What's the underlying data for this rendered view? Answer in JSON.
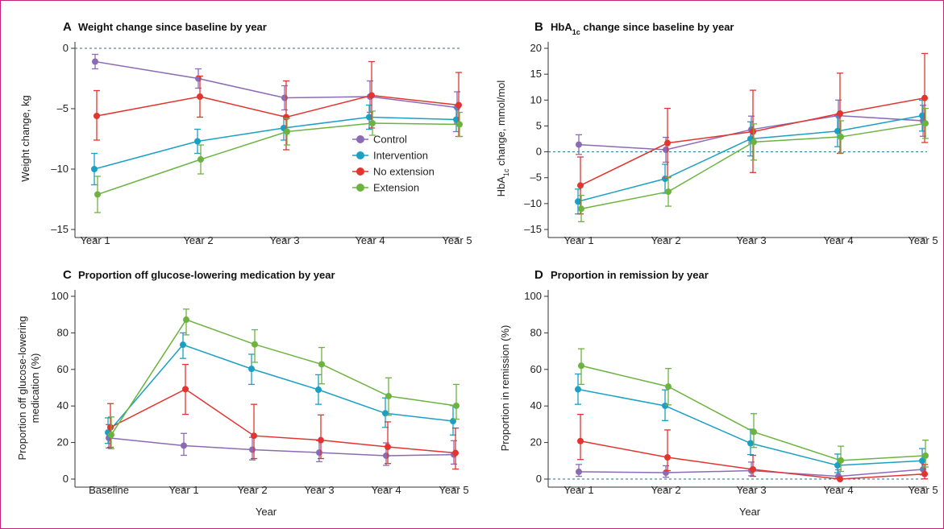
{
  "chart_data": [
    {
      "panel": "A",
      "title": "Weight change since baseline by year",
      "type": "line",
      "ylabel": "Weight change, kg",
      "xlabel": "",
      "categories": [
        "Year 1",
        "Year 2",
        "Year 3",
        "Year 4",
        "Year 5"
      ],
      "ylim": [
        -15,
        0
      ],
      "yticks": [
        0,
        -5,
        -10,
        -15
      ],
      "yticklabels": [
        "0",
        "–5",
        "–10",
        "–15"
      ],
      "zero_line": true,
      "series": [
        {
          "name": "Control",
          "color": "#8b6bb5",
          "values": [
            -1.1,
            -2.5,
            -4.1,
            -4.0,
            -4.9
          ],
          "lower": [
            -1.7,
            -3.3,
            -5.1,
            -5.3,
            -6.2
          ],
          "upper": [
            -0.5,
            -1.7,
            -3.1,
            -2.7,
            -3.6
          ]
        },
        {
          "name": "Intervention",
          "color": "#1ba0c4",
          "values": [
            -10.0,
            -7.7,
            -6.6,
            -5.7,
            -5.9
          ],
          "lower": [
            -11.3,
            -8.7,
            -7.6,
            -6.7,
            -6.9
          ],
          "upper": [
            -8.7,
            -6.7,
            -5.6,
            -4.7,
            -4.9
          ]
        },
        {
          "name": "No extension",
          "color": "#e3342f",
          "values": [
            -5.6,
            -4.0,
            -5.7,
            -3.9,
            -4.7
          ],
          "lower": [
            -7.6,
            -5.7,
            -8.4,
            -6.6,
            -7.3
          ],
          "upper": [
            -3.5,
            -2.3,
            -2.7,
            -1.1,
            -2.0
          ]
        },
        {
          "name": "Extension",
          "color": "#6cb33f",
          "values": [
            -12.1,
            -9.2,
            -6.9,
            -6.2,
            -6.3
          ],
          "lower": [
            -13.6,
            -10.4,
            -8.0,
            -7.2,
            -7.3
          ],
          "upper": [
            -10.6,
            -8.0,
            -5.8,
            -5.2,
            -5.3
          ]
        }
      ],
      "legend": "right"
    },
    {
      "panel": "B",
      "title_main": "HbA",
      "title_sub": "1c",
      "title_rest": " change since baseline by year",
      "type": "line",
      "ylabel_main": "HbA",
      "ylabel_sub": "1c",
      "ylabel_rest": " change, mmol/mol",
      "xlabel": "",
      "categories": [
        "Year 1",
        "Year 2",
        "Year 3",
        "Year 4",
        "Year 5"
      ],
      "ylim": [
        -15,
        20
      ],
      "yticks": [
        20,
        15,
        10,
        5,
        0,
        -5,
        -10,
        -15
      ],
      "yticklabels": [
        "20",
        "15",
        "10",
        "5",
        "0",
        "–5",
        "–10",
        "–15"
      ],
      "zero_line": true,
      "series": [
        {
          "name": "Control",
          "color": "#8b6bb5",
          "values": [
            1.4,
            0.4,
            4.3,
            7.0,
            6.0
          ],
          "lower": [
            -0.5,
            -2.0,
            1.7,
            4.0,
            3.0
          ],
          "upper": [
            3.3,
            2.8,
            6.9,
            10.0,
            9.0
          ]
        },
        {
          "name": "Intervention",
          "color": "#1ba0c4",
          "values": [
            -9.6,
            -5.2,
            2.5,
            4.0,
            7.0
          ],
          "lower": [
            -12.0,
            -8.0,
            -0.8,
            1.0,
            4.0
          ],
          "upper": [
            -7.2,
            -2.4,
            5.8,
            7.0,
            10.0
          ]
        },
        {
          "name": "No extension",
          "color": "#e3342f",
          "values": [
            -6.5,
            1.7,
            3.9,
            7.4,
            10.4
          ],
          "lower": [
            -12.0,
            -5.0,
            -4.0,
            -0.3,
            1.8
          ],
          "upper": [
            -1.0,
            8.4,
            11.9,
            15.2,
            19.0
          ]
        },
        {
          "name": "Extension",
          "color": "#6cb33f",
          "values": [
            -11.0,
            -7.7,
            1.9,
            2.9,
            5.5
          ],
          "lower": [
            -13.5,
            -10.5,
            -1.6,
            -0.2,
            2.6
          ],
          "upper": [
            -8.4,
            -4.9,
            5.4,
            6.0,
            8.4
          ]
        }
      ]
    },
    {
      "panel": "C",
      "title": "Proportion off glucose-lowering medication by year",
      "type": "line",
      "ylabel_lines": [
        "Proportion off glucose-lowering",
        "medication (%)"
      ],
      "xlabel": "Year",
      "categories": [
        "Baseline",
        "Year 1",
        "Year 2",
        "Year 3",
        "Year 4",
        "Year 5"
      ],
      "ylim": [
        0,
        100
      ],
      "yticks": [
        0,
        20,
        40,
        60,
        80,
        100
      ],
      "yticklabels": [
        "0",
        "20",
        "40",
        "60",
        "80",
        "100"
      ],
      "zero_line": false,
      "series": [
        {
          "name": "Control",
          "color": "#8b6bb5",
          "values": [
            22.5,
            18.3,
            16.1,
            14.5,
            12.8,
            13.4
          ],
          "lower": [
            17.0,
            13.0,
            10.5,
            9.5,
            7.5,
            8.2
          ],
          "upper": [
            29.8,
            25.0,
            22.8,
            21.0,
            19.8,
            21.0
          ]
        },
        {
          "name": "Intervention",
          "color": "#1ba0c4",
          "values": [
            25.5,
            73.5,
            60.3,
            48.9,
            36.0,
            31.7
          ],
          "lower": [
            19.5,
            66.0,
            51.8,
            40.9,
            28.3,
            24.1
          ],
          "upper": [
            33.5,
            80.0,
            68.3,
            57.1,
            44.4,
            40.2
          ]
        },
        {
          "name": "No extension",
          "color": "#e3342f",
          "values": [
            28.3,
            49.2,
            23.7,
            21.3,
            17.6,
            14.3
          ],
          "lower": [
            17.4,
            35.4,
            11.2,
            11.2,
            8.5,
            5.5
          ],
          "upper": [
            41.3,
            62.7,
            40.9,
            35.1,
            31.3,
            27.9
          ]
        },
        {
          "name": "Extension",
          "color": "#6cb33f",
          "values": [
            24.2,
            87.2,
            73.7,
            62.8,
            45.4,
            40.1
          ],
          "lower": [
            16.6,
            78.9,
            63.9,
            52.1,
            34.9,
            32.8
          ],
          "upper": [
            34.0,
            93.0,
            81.7,
            72.0,
            55.4,
            51.8
          ]
        }
      ]
    },
    {
      "panel": "D",
      "title": "Proportion in remission by year",
      "type": "line",
      "ylabel": "Proportion in remission (%)",
      "xlabel": "Year",
      "categories": [
        "Year 1",
        "Year 2",
        "Year 3",
        "Year 4",
        "Year 5"
      ],
      "ylim": [
        0,
        100
      ],
      "yticks": [
        0,
        20,
        40,
        60,
        80,
        100
      ],
      "yticklabels": [
        "0",
        "20",
        "40",
        "60",
        "80",
        "100"
      ],
      "zero_line": true,
      "series": [
        {
          "name": "Control",
          "color": "#8b6bb5",
          "values": [
            4.0,
            3.5,
            4.6,
            1.5,
            5.3
          ],
          "lower": [
            1.5,
            1.0,
            1.8,
            0.2,
            2.3
          ],
          "upper": [
            8.0,
            7.3,
            9.3,
            5.1,
            10.5
          ]
        },
        {
          "name": "Intervention",
          "color": "#1ba0c4",
          "values": [
            49.1,
            40.1,
            19.6,
            7.5,
            10.0
          ],
          "lower": [
            40.9,
            32.0,
            13.4,
            3.5,
            5.2
          ],
          "upper": [
            57.5,
            48.8,
            27.3,
            13.7,
            16.7
          ]
        },
        {
          "name": "No extension",
          "color": "#e3342f",
          "values": [
            20.8,
            11.9,
            5.3,
            0.0,
            2.8
          ],
          "lower": [
            10.7,
            4.6,
            1.5,
            0.0,
            0.1
          ],
          "upper": [
            35.4,
            26.9,
            13.0,
            0.0,
            8.0
          ]
        },
        {
          "name": "Extension",
          "color": "#6cb33f",
          "values": [
            62.0,
            50.6,
            25.8,
            10.2,
            12.8
          ],
          "lower": [
            51.8,
            40.6,
            17.3,
            4.2,
            6.6
          ],
          "upper": [
            71.3,
            60.5,
            35.8,
            18.0,
            21.3
          ]
        }
      ]
    }
  ]
}
